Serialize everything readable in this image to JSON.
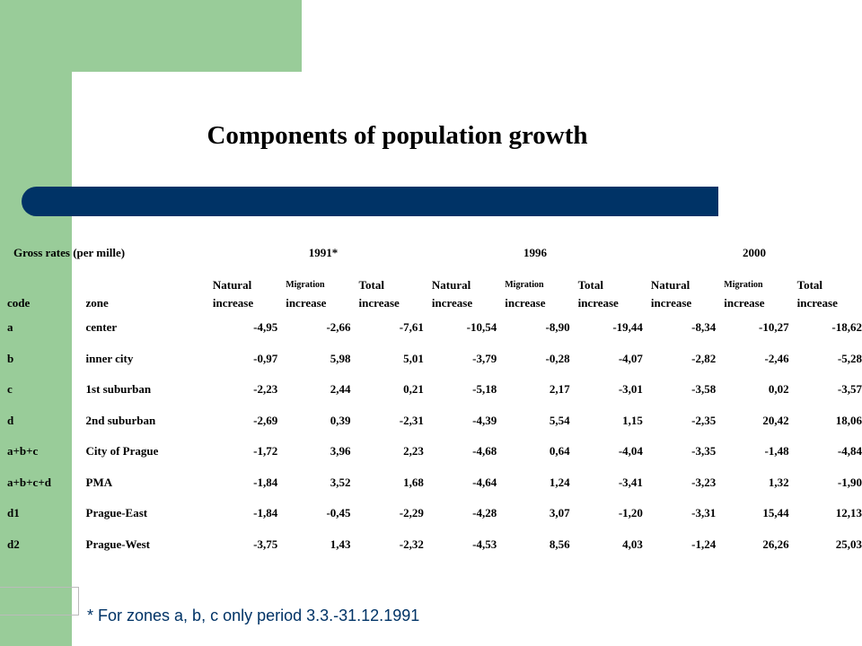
{
  "slide": {
    "title": "Components of population growth",
    "footnote": "* For zones a, b, c only period 3.3.-31.12.1991",
    "colors": {
      "green": "#99cc99",
      "bar": "#003366",
      "footnote": "#003366"
    }
  },
  "table": {
    "caption": "Gross rates (per mille)",
    "years": [
      "1991*",
      "1996",
      "2000"
    ],
    "columns": {
      "code": "code",
      "zone": "zone",
      "natural": [
        "Natural",
        "increase"
      ],
      "migration": [
        "Migration",
        "increase"
      ],
      "total": [
        "Total",
        "increase"
      ]
    },
    "rows": [
      {
        "code": "a",
        "zone": "center",
        "vals": [
          "-4,95",
          "-2,66",
          "-7,61",
          "-10,54",
          "-8,90",
          "-19,44",
          "-8,34",
          "-10,27",
          "-18,62"
        ]
      },
      {
        "code": "b",
        "zone": "inner city",
        "vals": [
          "-0,97",
          "5,98",
          "5,01",
          "-3,79",
          "-0,28",
          "-4,07",
          "-2,82",
          "-2,46",
          "-5,28"
        ]
      },
      {
        "code": "c",
        "zone": "1st suburban",
        "vals": [
          "-2,23",
          "2,44",
          "0,21",
          "-5,18",
          "2,17",
          "-3,01",
          "-3,58",
          "0,02",
          "-3,57"
        ]
      },
      {
        "code": "d",
        "zone": "2nd suburban",
        "vals": [
          "-2,69",
          "0,39",
          "-2,31",
          "-4,39",
          "5,54",
          "1,15",
          "-2,35",
          "20,42",
          "18,06"
        ]
      },
      {
        "code": "a+b+c",
        "zone": "City of Prague",
        "vals": [
          "-1,72",
          "3,96",
          "2,23",
          "-4,68",
          "0,64",
          "-4,04",
          "-3,35",
          "-1,48",
          "-4,84"
        ]
      },
      {
        "code": "a+b+c+d",
        "zone": "PMA",
        "vals": [
          "-1,84",
          "3,52",
          "1,68",
          "-4,64",
          "1,24",
          "-3,41",
          "-3,23",
          "1,32",
          "-1,90"
        ]
      },
      {
        "code": "d1",
        "zone": "Prague-East",
        "vals": [
          "-1,84",
          "-0,45",
          "-2,29",
          "-4,28",
          "3,07",
          "-1,20",
          "-3,31",
          "15,44",
          "12,13"
        ]
      },
      {
        "code": "d2",
        "zone": "Prague-West",
        "vals": [
          "-3,75",
          "1,43",
          "-2,32",
          "-4,53",
          "8,56",
          "4,03",
          "-1,24",
          "26,26",
          "25,03"
        ]
      }
    ]
  }
}
